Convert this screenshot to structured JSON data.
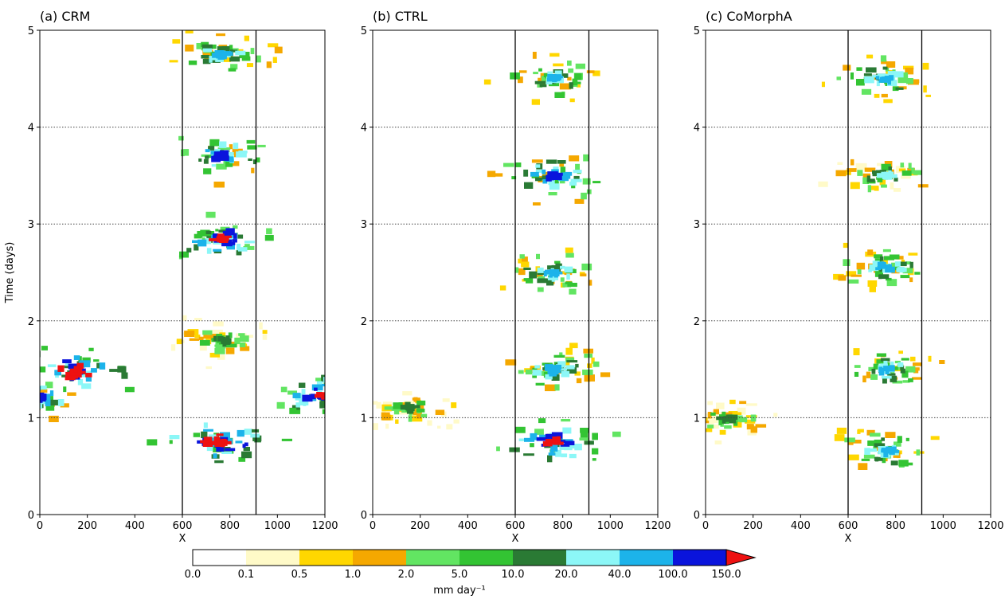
{
  "chart_data": [
    {
      "type": "heatmap",
      "title": "(a) CRM",
      "xlabel": "X",
      "ylabel": "Time (days)",
      "xlim": [
        0,
        1200
      ],
      "ylim": [
        0,
        5
      ],
      "xticks": [
        "0",
        "200",
        "400",
        "600",
        "800",
        "1000",
        "1200"
      ],
      "yticks": [
        "0",
        "1",
        "2",
        "3",
        "4",
        "5"
      ],
      "dotted_hlines": [
        1,
        2,
        3,
        4
      ],
      "vlines": [
        600,
        910
      ],
      "features": [
        {
          "x": 0,
          "t": 1.22,
          "level": 9
        },
        {
          "x": 150,
          "t": 1.47,
          "level": 11
        },
        {
          "x": 760,
          "t": 0.75,
          "level": 11
        },
        {
          "x": 770,
          "t": 4.75,
          "level": 8
        },
        {
          "x": 760,
          "t": 3.7,
          "level": 9
        },
        {
          "x": 765,
          "t": 2.85,
          "level": 10
        },
        {
          "x": 770,
          "t": 1.8,
          "level": 6
        },
        {
          "x": 1200,
          "t": 1.22,
          "level": 10
        }
      ]
    },
    {
      "type": "heatmap",
      "title": "(b) CTRL",
      "xlabel": "X",
      "xlim": [
        0,
        1200
      ],
      "ylim": [
        0,
        5
      ],
      "xticks": [
        "0",
        "200",
        "400",
        "600",
        "800",
        "1000",
        "1200"
      ],
      "yticks": [
        "0",
        "1",
        "2",
        "3",
        "4",
        "5"
      ],
      "dotted_hlines": [
        1,
        2,
        3,
        4
      ],
      "vlines": [
        600,
        910
      ],
      "features": [
        {
          "x": 760,
          "t": 0.75,
          "level": 10
        },
        {
          "x": 760,
          "t": 1.5,
          "level": 8
        },
        {
          "x": 760,
          "t": 2.5,
          "level": 8
        },
        {
          "x": 760,
          "t": 3.5,
          "level": 9
        },
        {
          "x": 760,
          "t": 4.5,
          "level": 8
        },
        {
          "x": 150,
          "t": 1.1,
          "level": 6
        }
      ]
    },
    {
      "type": "heatmap",
      "title": "(c) CoMorphA",
      "xlabel": "X",
      "xlim": [
        0,
        1200
      ],
      "ylim": [
        0,
        5
      ],
      "xticks": [
        "0",
        "200",
        "400",
        "600",
        "800",
        "1000",
        "1200"
      ],
      "yticks": [
        "0",
        "1",
        "2",
        "3",
        "4",
        "5"
      ],
      "dotted_hlines": [
        1,
        2,
        3,
        4
      ],
      "vlines": [
        600,
        910
      ],
      "features": [
        {
          "x": 760,
          "t": 0.65,
          "level": 8
        },
        {
          "x": 760,
          "t": 1.5,
          "level": 8
        },
        {
          "x": 760,
          "t": 2.55,
          "level": 8
        },
        {
          "x": 760,
          "t": 3.5,
          "level": 7
        },
        {
          "x": 760,
          "t": 4.5,
          "level": 8
        },
        {
          "x": 100,
          "t": 1.0,
          "level": 6
        }
      ]
    }
  ],
  "colorbar": {
    "label": "mm day⁻¹",
    "tick_labels": [
      "0.0",
      "0.1",
      "0.5",
      "1.0",
      "2.0",
      "5.0",
      "10.0",
      "20.0",
      "40.0",
      "100.0",
      "150.0"
    ],
    "colors": [
      "#ffffff",
      "#fffac8",
      "#ffd700",
      "#f5a800",
      "#62e562",
      "#33c433",
      "#2a7a34",
      "#8cf7f7",
      "#1cb3ea",
      "#0a14dc",
      "#ee1111"
    ],
    "extend": "max"
  }
}
